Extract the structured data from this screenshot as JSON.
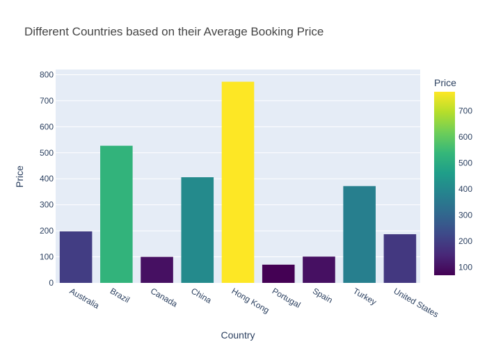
{
  "chart_data": {
    "type": "bar",
    "title": "Different Countries based on their Average Booking Price",
    "xlabel": "Country",
    "ylabel": "Price",
    "categories": [
      "Australia",
      "Brazil",
      "Canada",
      "China",
      "Hong Kong",
      "Portugal",
      "Spain",
      "Turkey",
      "United States"
    ],
    "values": [
      198,
      527,
      100,
      406,
      773,
      70,
      101,
      372,
      187
    ],
    "ylim": [
      0,
      820
    ],
    "yticks": [
      0,
      100,
      200,
      300,
      400,
      500,
      600,
      700,
      800
    ],
    "grid": true,
    "colorbar": {
      "title": "Price",
      "range": [
        70,
        773
      ],
      "ticks": [
        100,
        200,
        300,
        400,
        500,
        600,
        700
      ],
      "colorscale": "viridis"
    },
    "colors": {
      "plot_background": "#e5ecf6",
      "gridline": "#ffffff",
      "text": "#2a3f5f",
      "title_text": "#444444"
    }
  }
}
